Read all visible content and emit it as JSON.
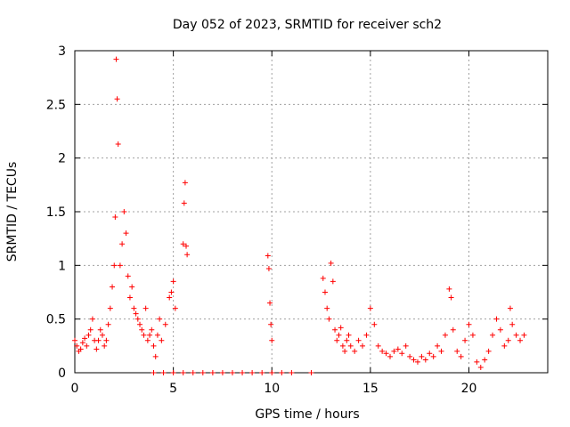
{
  "chart_data": {
    "type": "scatter",
    "title": "Day 052 of 2023, SRMTID for receiver sch2",
    "xlabel": "GPS time / hours",
    "ylabel": "SRMTID / TECUs",
    "xlim": [
      0,
      24
    ],
    "ylim": [
      0,
      3
    ],
    "xticks": [
      0,
      5,
      10,
      15,
      20
    ],
    "xtick_labels": [
      "0",
      "5",
      "10",
      "15",
      "20"
    ],
    "yticks": [
      0,
      0.5,
      1,
      1.5,
      2,
      2.5,
      3
    ],
    "ytick_labels": [
      "0",
      "0.5",
      "1",
      "1.5",
      "2",
      "2.5",
      "3"
    ],
    "grid": true,
    "marker": "+",
    "series": [
      {
        "name": "SRMTID",
        "color": "#ff0000",
        "x": [
          0.0,
          0.1,
          0.2,
          0.3,
          0.4,
          0.5,
          0.6,
          0.7,
          0.8,
          0.9,
          1.0,
          1.1,
          1.2,
          1.3,
          1.4,
          1.5,
          1.6,
          1.7,
          1.8,
          1.9,
          2.0,
          2.05,
          2.1,
          2.15,
          2.2,
          2.3,
          2.4,
          2.5,
          2.6,
          2.7,
          2.8,
          2.9,
          3.0,
          3.1,
          3.2,
          3.3,
          3.4,
          3.5,
          3.6,
          3.7,
          3.8,
          3.9,
          4.0,
          4.1,
          4.2,
          4.3,
          4.4,
          4.6,
          4.8,
          4.9,
          5.0,
          5.1,
          5.5,
          5.55,
          5.6,
          5.65,
          5.7,
          9.8,
          9.85,
          9.9,
          9.95,
          10.0,
          12.6,
          12.7,
          12.8,
          12.9,
          13.0,
          13.1,
          13.2,
          13.3,
          13.4,
          13.5,
          13.6,
          13.7,
          13.8,
          13.9,
          14.0,
          14.2,
          14.4,
          14.6,
          14.8,
          15.0,
          15.2,
          15.4,
          15.6,
          15.8,
          16.0,
          16.2,
          16.4,
          16.6,
          16.8,
          17.0,
          17.2,
          17.4,
          17.6,
          17.8,
          18.0,
          18.2,
          18.4,
          18.6,
          18.8,
          19.0,
          19.1,
          19.2,
          19.4,
          19.6,
          19.8,
          20.0,
          20.2,
          20.4,
          20.6,
          20.8,
          21.0,
          21.2,
          21.4,
          21.6,
          21.8,
          22.0,
          22.1,
          22.2,
          22.4,
          22.6,
          22.8,
          4.0,
          4.5,
          5.0,
          5.5,
          6.0,
          6.5,
          7.0,
          7.5,
          8.0,
          8.5,
          9.0,
          9.5,
          10.0,
          10.5,
          11.0,
          12.0
        ],
        "y": [
          0.3,
          0.25,
          0.2,
          0.22,
          0.28,
          0.32,
          0.25,
          0.35,
          0.4,
          0.5,
          0.3,
          0.22,
          0.3,
          0.4,
          0.35,
          0.25,
          0.3,
          0.45,
          0.6,
          0.8,
          1.0,
          1.45,
          2.92,
          2.55,
          2.13,
          1.0,
          1.2,
          1.5,
          1.3,
          0.9,
          0.7,
          0.8,
          0.6,
          0.55,
          0.5,
          0.45,
          0.4,
          0.35,
          0.6,
          0.3,
          0.35,
          0.4,
          0.25,
          0.15,
          0.35,
          0.5,
          0.3,
          0.45,
          0.7,
          0.75,
          0.85,
          0.6,
          1.2,
          1.58,
          1.77,
          1.18,
          1.1,
          1.09,
          0.97,
          0.65,
          0.45,
          0.3,
          0.88,
          0.75,
          0.6,
          0.5,
          1.02,
          0.85,
          0.4,
          0.3,
          0.35,
          0.42,
          0.25,
          0.2,
          0.3,
          0.35,
          0.25,
          0.2,
          0.3,
          0.25,
          0.35,
          0.6,
          0.45,
          0.25,
          0.2,
          0.18,
          0.15,
          0.2,
          0.22,
          0.18,
          0.25,
          0.15,
          0.12,
          0.1,
          0.15,
          0.12,
          0.18,
          0.15,
          0.25,
          0.2,
          0.35,
          0.78,
          0.7,
          0.4,
          0.2,
          0.15,
          0.3,
          0.45,
          0.35,
          0.1,
          0.05,
          0.12,
          0.2,
          0.35,
          0.5,
          0.4,
          0.25,
          0.3,
          0.6,
          0.45,
          0.35,
          0.3,
          0.35,
          0.0,
          0.0,
          0.0,
          0.0,
          0.0,
          0.0,
          0.0,
          0.0,
          0.0,
          0.0,
          0.0,
          0.0,
          0.0,
          0.0,
          0.0,
          0.0
        ]
      }
    ]
  }
}
